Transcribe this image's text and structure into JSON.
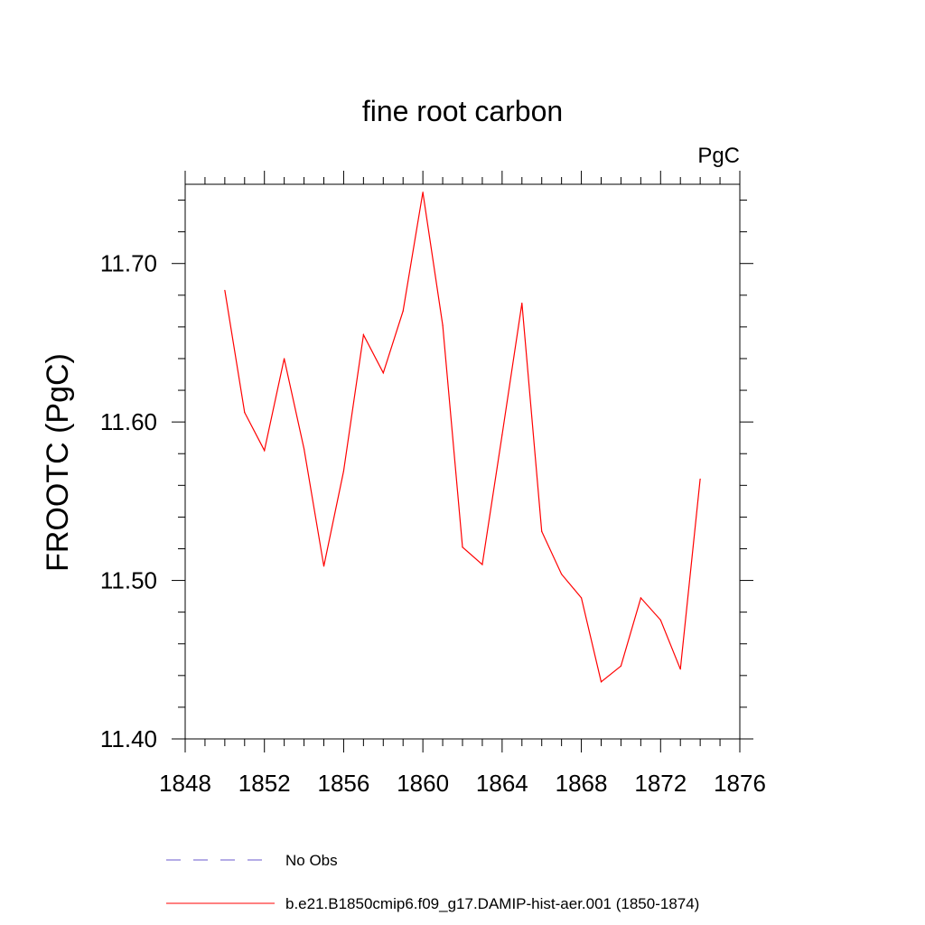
{
  "chart_data": {
    "type": "line",
    "title": "fine root carbon",
    "units": "PgC",
    "xlabel": "",
    "ylabel": "FROOTC  (PgC)",
    "xlim": [
      1848,
      1876
    ],
    "ylim": [
      11.4,
      11.75
    ],
    "x_ticks": [
      "1848",
      "1852",
      "1856",
      "1860",
      "1864",
      "1868",
      "1872",
      "1876"
    ],
    "y_ticks": [
      "11.40",
      "11.50",
      "11.60",
      "11.70"
    ],
    "grid": false,
    "legend_position": "bottom",
    "series": [
      {
        "name": "b.e21.B1850cmip6.f09_g17.DAMIP-hist-aer.001 (1850-1874)",
        "color": "#ff0000",
        "dash": "solid",
        "x": [
          1850,
          1851,
          1852,
          1853,
          1854,
          1855,
          1856,
          1857,
          1858,
          1859,
          1860,
          1861,
          1862,
          1863,
          1864,
          1865,
          1866,
          1867,
          1868,
          1869,
          1870,
          1871,
          1872,
          1873,
          1874
        ],
        "values": [
          11.683,
          11.606,
          11.582,
          11.64,
          11.583,
          11.509,
          11.569,
          11.655,
          11.631,
          11.67,
          11.745,
          11.661,
          11.521,
          11.51,
          11.592,
          11.675,
          11.531,
          11.504,
          11.489,
          11.436,
          11.446,
          11.489,
          11.475,
          11.444,
          11.564
        ]
      }
    ],
    "legend": [
      {
        "label": "No Obs",
        "color": "#6a5acd",
        "dash": "dashed"
      },
      {
        "label": "b.e21.B1850cmip6.f09_g17.DAMIP-hist-aer.001 (1850-1874)",
        "color": "#ff0000",
        "dash": "solid"
      }
    ]
  }
}
